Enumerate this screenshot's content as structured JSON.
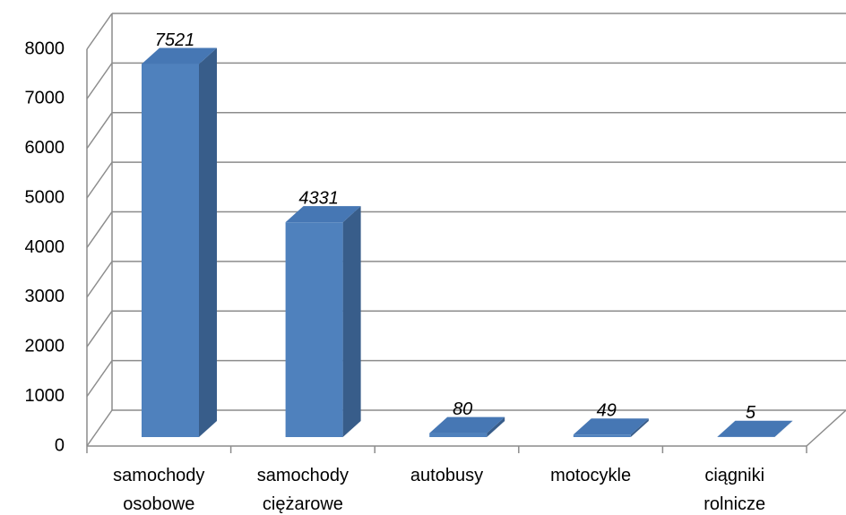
{
  "chart_data": {
    "type": "bar3d",
    "categories": [
      "samochody osobowe",
      "samochody ciężarowe",
      "autobusy",
      "motocykle",
      "ciągniki rolnicze"
    ],
    "values": [
      7521,
      4331,
      80,
      49,
      5
    ],
    "color": "#4f81bd",
    "side_color": "#385d8a",
    "top_color": "#4677b4",
    "ylim": [
      0,
      8000
    ],
    "yticks": [
      0,
      1000,
      2000,
      3000,
      4000,
      5000,
      6000,
      7000,
      8000
    ],
    "grid": true
  }
}
